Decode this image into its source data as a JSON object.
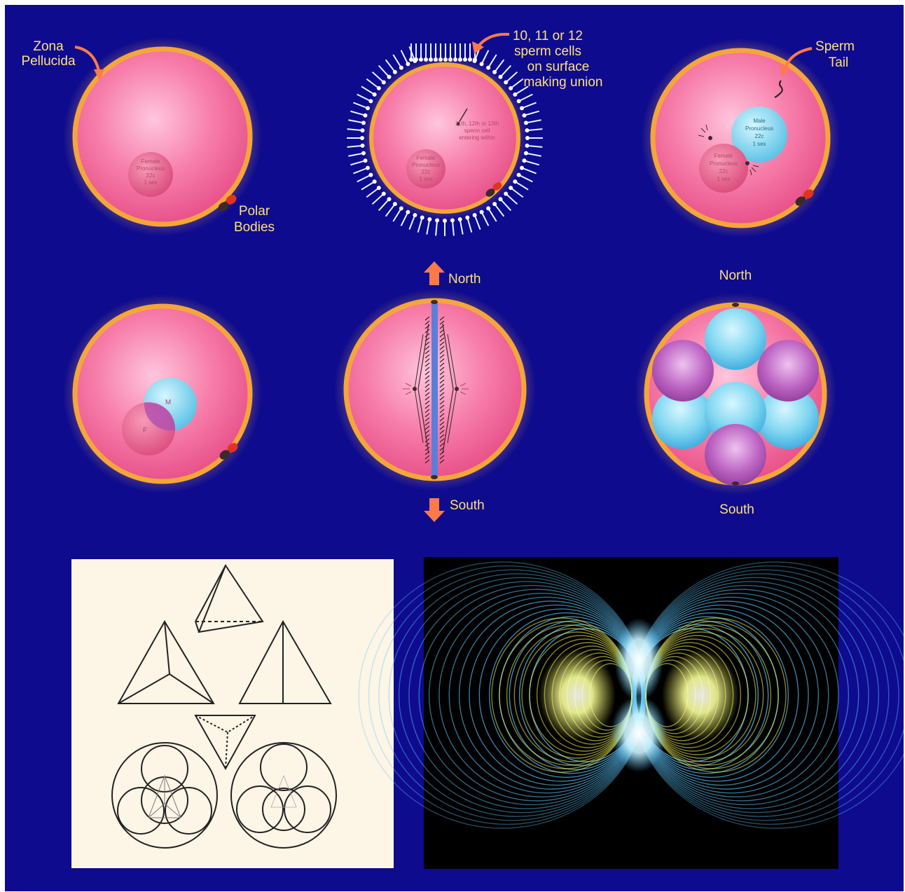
{
  "colors": {
    "background": "#0e0b8e",
    "cytoplasm": "#f06a9a",
    "zona": "#f5a63a",
    "female_pronucleus": "#e65a86",
    "male_pronucleus": "#7fd6f0",
    "purple_cell": "#b24fb2",
    "label": "#ffe07a",
    "arrow": "#ff7a4a",
    "paper": "#fdf5e6",
    "torus_outer": "#5ec8ff",
    "torus_inner": "#f2f25a"
  },
  "panel1": {
    "zona_label_1": "Zona",
    "zona_label_2": "Pellucida",
    "polar_label_1": "Polar",
    "polar_label_2": "Bodies",
    "female_pn": [
      "Female",
      "Pronucleus",
      "22c",
      "1 sex"
    ]
  },
  "panel2": {
    "sperm_label": [
      "10, 11 or 12",
      "sperm cells",
      "on surface",
      "making union"
    ],
    "entering": [
      "11th, 12th or 13th",
      "sperm cell",
      "entering within"
    ],
    "female_pn": [
      "Female",
      "Pronucleus",
      "22c",
      "1 sex"
    ]
  },
  "panel3": {
    "tail_label_1": "Sperm",
    "tail_label_2": "Tail",
    "male_pn": [
      "Male",
      "Pronucleus",
      "22c",
      "1 sex"
    ],
    "female_pn": [
      "Female",
      "Pronucleus",
      "22c",
      "1 sex"
    ]
  },
  "panel4": {
    "m_label": "M",
    "f_label": "F"
  },
  "panel5": {
    "north": "North",
    "south": "South"
  },
  "panel6": {
    "north": "North",
    "south": "South"
  },
  "icons": [
    "up-arrow-icon",
    "down-arrow-icon"
  ]
}
